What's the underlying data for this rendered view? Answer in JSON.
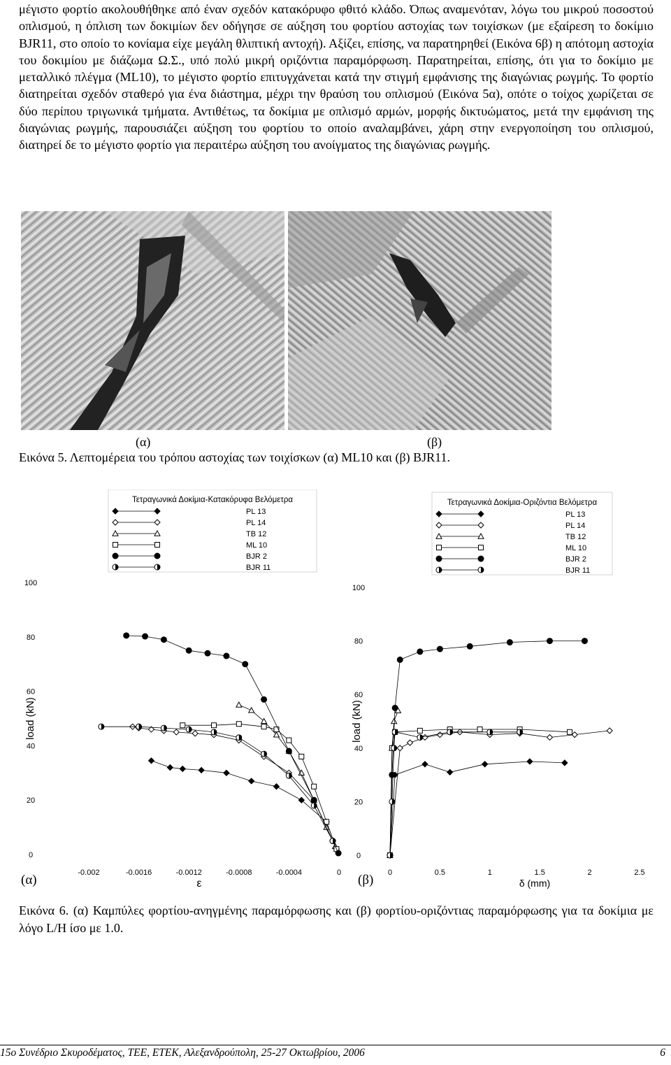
{
  "body_text": "μέγιστο φορτίο ακολουθήθηκε από έναν σχεδόν κατακόρυφο φθιτό κλάδο. Όπως αναμενόταν, λόγω του μικρού ποσοστού οπλισμού, η όπλιση των δοκιμίων δεν οδήγησε σε αύξηση του φορτίου αστοχίας των τοιχίσκων (με εξαίρεση το δοκίμιο BJR11, στο οποίο το κονίαμα είχε μεγάλη θλιπτική αντοχή). Αξίζει, επίσης, να παρατηρηθεί (Εικόνα 6β) η απότομη αστοχία του δοκιμίου με διάζωμα Ω.Σ., υπό πολύ μικρή οριζόντια παραμόρφωση. Παρατηρείται, επίσης, ότι για το δοκίμιο με μεταλλικό πλέγμα (ML10), το μέγιστο φορτίο επιτυγχάνεται κατά την στιγμή εμφάνισης της διαγώνιας ρωγμής. Το φορτίο διατηρείται σχεδόν σταθερό για ένα διάστημα, μέχρι την θραύση του οπλισμού (Εικόνα 5α), οπότε ο τοίχος χωρίζεται σε δύο περίπου τριγωνικά τμήματα. Αντιθέτως, τα δοκίμια με οπλισμό αρμών, μορφής δικτυώματος, μετά την εμφάνιση της διαγώνιας ρωγμής, παρουσιάζει αύξηση του φορτίου το οποίο αναλαμβάνει, χάρη στην ενεργοποίηση του οπλισμού, διατηρεί δε το μέγιστο φορτίο για περαιτέρω αύξηση του ανοίγματος της διαγώνιας ρωγμής.",
  "figure5": {
    "label_a": "(α)",
    "label_b": "(β)",
    "caption": "Εικόνα 5. Λεπτομέρεια του τρόπου αστοχίας των τοιχίσκων (α) ML10 και (β) BJR11."
  },
  "figure6": {
    "label_a": "(α)",
    "label_b": "(β)",
    "caption": "Εικόνα 6. (α) Καμπύλες φορτίου-ανηγμένης παραμόρφωσης και (β) φορτίου-οριζόντιας παραμόρφωσης για τα δοκίμια με λόγο L/H ίσο με 1.0."
  },
  "chart_data": [
    {
      "type": "scatter",
      "title": "Τετραγωνικά Δοκίμια-Κατακόρυφα Βελόμετρα",
      "xlabel": "ε",
      "ylabel": "load (kN)",
      "xlim": [
        -0.002,
        0
      ],
      "ylim": [
        0,
        100
      ],
      "x_ticks": [
        "-0.002",
        "-0.0016",
        "-0.0012",
        "-0.0008",
        "-0.0004",
        "0"
      ],
      "y_ticks": [
        "0",
        "20",
        "40",
        "60",
        "80",
        "100"
      ],
      "legend_position": "top",
      "series": [
        {
          "name": "PL 13",
          "marker": "diamond-filled",
          "points": [
            [
              -0.0015,
              34.5
            ],
            [
              -0.00135,
              32
            ],
            [
              -0.00125,
              31.5
            ],
            [
              -0.0011,
              31
            ],
            [
              -0.0009,
              30
            ],
            [
              -0.0007,
              27
            ],
            [
              -0.0005,
              25
            ],
            [
              -0.0003,
              20
            ],
            [
              -0.0001,
              12
            ],
            [
              -2e-05,
              2
            ]
          ]
        },
        {
          "name": "PL 14",
          "marker": "diamond-open",
          "points": [
            [
              -0.00165,
              47
            ],
            [
              -0.0016,
              46.5
            ],
            [
              -0.0015,
              46
            ],
            [
              -0.0014,
              45.5
            ],
            [
              -0.0013,
              45
            ],
            [
              -0.00115,
              44.5
            ],
            [
              -0.001,
              44
            ],
            [
              -0.0008,
              42
            ],
            [
              -0.0006,
              36
            ],
            [
              -0.0004,
              30
            ],
            [
              -0.0002,
              20
            ],
            [
              -5e-05,
              5
            ]
          ]
        },
        {
          "name": "TB 12",
          "marker": "triangle-open",
          "points": [
            [
              -0.0008,
              55
            ],
            [
              -0.0007,
              53
            ],
            [
              -0.0006,
              49
            ],
            [
              -0.0005,
              44
            ],
            [
              -0.0004,
              38
            ],
            [
              -0.0003,
              30
            ],
            [
              -0.0002,
              20
            ],
            [
              -0.0001,
              10
            ],
            [
              -3e-05,
              3
            ]
          ]
        },
        {
          "name": "ML 10",
          "marker": "square-open",
          "points": [
            [
              -0.00125,
              47.5
            ],
            [
              -0.001,
              47.5
            ],
            [
              -0.0008,
              48
            ],
            [
              -0.0006,
              47
            ],
            [
              -0.0005,
              46
            ],
            [
              -0.0004,
              42
            ],
            [
              -0.0003,
              36
            ],
            [
              -0.0002,
              25
            ],
            [
              -0.0001,
              12
            ],
            [
              -2e-05,
              2
            ]
          ]
        },
        {
          "name": "BJR 2",
          "marker": "circle-filled",
          "points": [
            [
              -0.0017,
              80.5
            ],
            [
              -0.00155,
              80.2
            ],
            [
              -0.0014,
              79
            ],
            [
              -0.0012,
              75
            ],
            [
              -0.00105,
              74
            ],
            [
              -0.0009,
              73
            ],
            [
              -0.00075,
              70
            ],
            [
              -0.0006,
              57
            ],
            [
              -0.0004,
              38
            ],
            [
              -0.0002,
              20
            ],
            [
              -5e-05,
              5
            ],
            [
              -5e-06,
              0.5
            ]
          ]
        },
        {
          "name": "BJR 11",
          "marker": "circle-half",
          "points": [
            [
              -0.0019,
              47
            ],
            [
              -0.0016,
              47
            ],
            [
              -0.0014,
              46.5
            ],
            [
              -0.0012,
              46
            ],
            [
              -0.001,
              45
            ],
            [
              -0.0008,
              43
            ],
            [
              -0.0006,
              37
            ],
            [
              -0.0004,
              29
            ],
            [
              -0.0002,
              18
            ],
            [
              -5e-05,
              5
            ]
          ]
        }
      ]
    },
    {
      "type": "scatter",
      "title": "Τετραγωνικά Δοκίμια-Οριζόντια Βελόμετρα",
      "xlabel": "δ (mm)",
      "ylabel": "load (kN)",
      "xlim": [
        0,
        2.5
      ],
      "ylim": [
        0,
        100
      ],
      "x_ticks": [
        "0",
        "0.5",
        "1",
        "1.5",
        "2",
        "2.5"
      ],
      "y_ticks": [
        "0",
        "20",
        "40",
        "60",
        "80",
        "100"
      ],
      "legend_position": "top",
      "series": [
        {
          "name": "PL 13",
          "marker": "diamond-filled",
          "points": [
            [
              0,
              0
            ],
            [
              0.05,
              30
            ],
            [
              0.35,
              34
            ],
            [
              0.6,
              31
            ],
            [
              0.95,
              34
            ],
            [
              1.4,
              35
            ],
            [
              1.75,
              34.5
            ]
          ]
        },
        {
          "name": "PL 14",
          "marker": "diamond-open",
          "points": [
            [
              0,
              0
            ],
            [
              0.1,
              40
            ],
            [
              0.2,
              42
            ],
            [
              0.35,
              44
            ],
            [
              0.5,
              45
            ],
            [
              0.7,
              46
            ],
            [
              1.0,
              45
            ],
            [
              1.3,
              45.5
            ],
            [
              1.6,
              44
            ],
            [
              1.85,
              45
            ],
            [
              2.2,
              46.5
            ]
          ]
        },
        {
          "name": "TB 12",
          "marker": "triangle-open",
          "points": [
            [
              0,
              0
            ],
            [
              0.02,
              40
            ],
            [
              0.04,
              50
            ],
            [
              0.08,
              54
            ]
          ]
        },
        {
          "name": "ML 10",
          "marker": "square-open",
          "points": [
            [
              0,
              0
            ],
            [
              0.02,
              40
            ],
            [
              0.05,
              46
            ],
            [
              0.3,
              46.5
            ],
            [
              0.6,
              47
            ],
            [
              0.9,
              47
            ],
            [
              1.3,
              47
            ],
            [
              1.8,
              46
            ]
          ]
        },
        {
          "name": "BJR 2",
          "marker": "circle-filled",
          "points": [
            [
              0,
              0
            ],
            [
              0.02,
              30
            ],
            [
              0.05,
              55
            ],
            [
              0.1,
              73
            ],
            [
              0.3,
              76
            ],
            [
              0.5,
              77
            ],
            [
              0.8,
              78
            ],
            [
              1.2,
              79.5
            ],
            [
              1.6,
              80
            ],
            [
              1.95,
              80
            ]
          ]
        },
        {
          "name": "BJR 11",
          "marker": "circle-half",
          "points": [
            [
              0,
              0
            ],
            [
              0.02,
              20
            ],
            [
              0.04,
              40
            ],
            [
              0.05,
              46
            ],
            [
              0.3,
              44
            ],
            [
              0.6,
              46
            ],
            [
              1.0,
              46
            ],
            [
              1.3,
              46
            ]
          ]
        }
      ]
    }
  ],
  "footer": {
    "text": "15ο Συνέδριο Σκυροδέματος, ΤΕΕ, ΕΤΕΚ, Αλεξανδρούπολη, 25-27 Οκτωβρίου, 2006",
    "page": "6"
  }
}
